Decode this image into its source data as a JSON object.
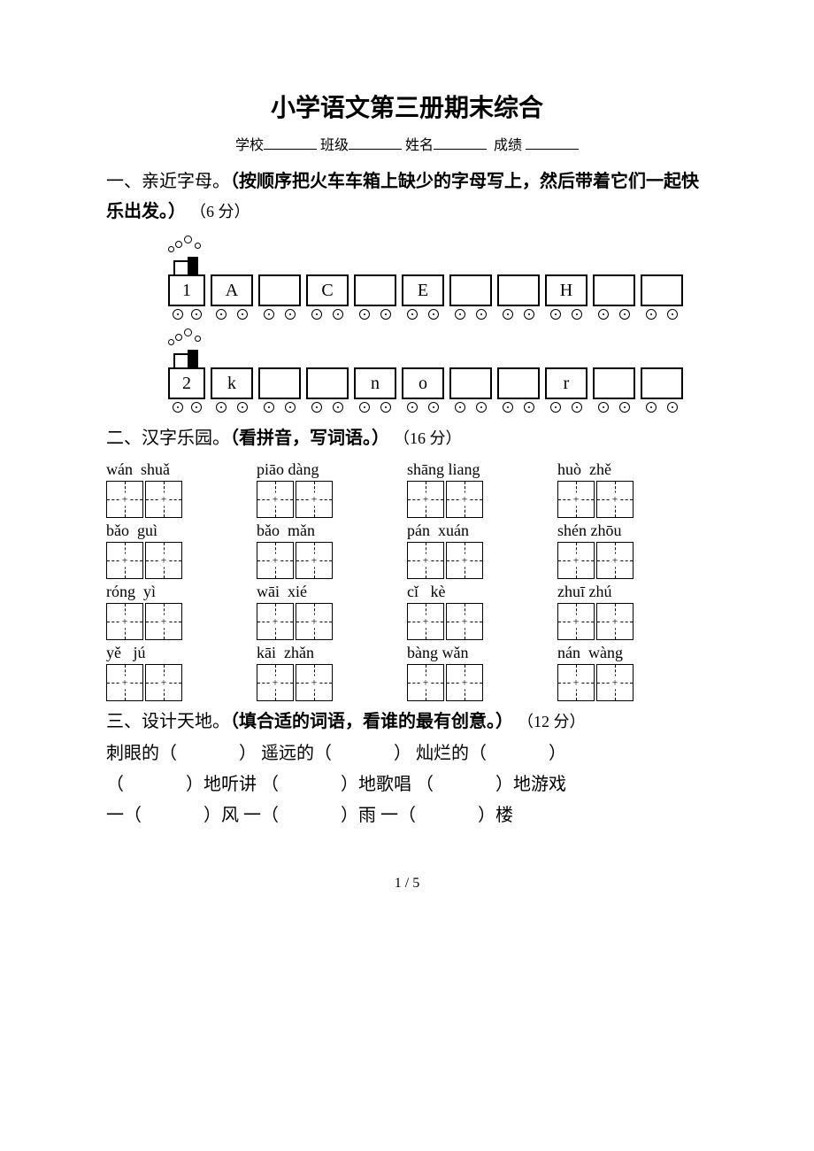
{
  "document": {
    "title": "小学语文第三册期末综合",
    "info_labels": {
      "school": "学校",
      "class": "班级",
      "name": "姓名",
      "score": "成绩"
    },
    "page_number": "1 / 5"
  },
  "section1": {
    "label": "一、亲近字母。",
    "instruction": "（按顺序把火车车箱上缺少的字母写上，然后带着它们一起快乐出发。）",
    "points": "（6 分）",
    "trains": [
      {
        "engine": "1",
        "cars": [
          "A",
          "",
          "C",
          "",
          "E",
          "",
          "",
          "H",
          "",
          ""
        ]
      },
      {
        "engine": "2",
        "cars": [
          "k",
          "",
          "",
          "n",
          "o",
          "",
          "",
          "r",
          "",
          ""
        ]
      }
    ],
    "styling": {
      "car_border_color": "#000000",
      "car_width": 44,
      "car_height": 32,
      "font_size": 20
    }
  },
  "section2": {
    "label": "二、汉字乐园。",
    "instruction": "（看拼音，写词语。）",
    "points": "（16 分）",
    "rows": [
      [
        {
          "pinyin": "wán  shuǎ"
        },
        {
          "pinyin": "piāo dàng"
        },
        {
          "pinyin": "shāng liang"
        },
        {
          "pinyin": "huò  zhě"
        }
      ],
      [
        {
          "pinyin": "bǎo  guì"
        },
        {
          "pinyin": "bǎo  mǎn"
        },
        {
          "pinyin": "pán  xuán"
        },
        {
          "pinyin": "shén zhōu"
        }
      ],
      [
        {
          "pinyin": "róng  yì"
        },
        {
          "pinyin": "wāi  xié"
        },
        {
          "pinyin": "cǐ   kè"
        },
        {
          "pinyin": "zhuī zhú"
        }
      ],
      [
        {
          "pinyin": "yě   jú"
        },
        {
          "pinyin": "kāi  zhǎn"
        },
        {
          "pinyin": "bàng wǎn"
        },
        {
          "pinyin": "nán  wàng"
        }
      ]
    ],
    "styling": {
      "box_size": 42,
      "border_color": "#000000",
      "dash_color": "#000000",
      "pinyin_fontsize": 18
    }
  },
  "section3": {
    "label": "三、设计天地。",
    "instruction": "（填合适的词语，看谁的最有创意。）",
    "points": "（12 分）",
    "lines": [
      {
        "parts": [
          "刺眼的（",
          "）  遥远的（",
          "）  灿烂的（",
          "）"
        ]
      },
      {
        "parts": [
          "（",
          "）地听讲  （",
          "）地歌唱  （",
          "）地游戏"
        ]
      },
      {
        "parts": [
          "一（",
          "）风    一（",
          "）雨       一（",
          "）楼"
        ]
      }
    ]
  }
}
